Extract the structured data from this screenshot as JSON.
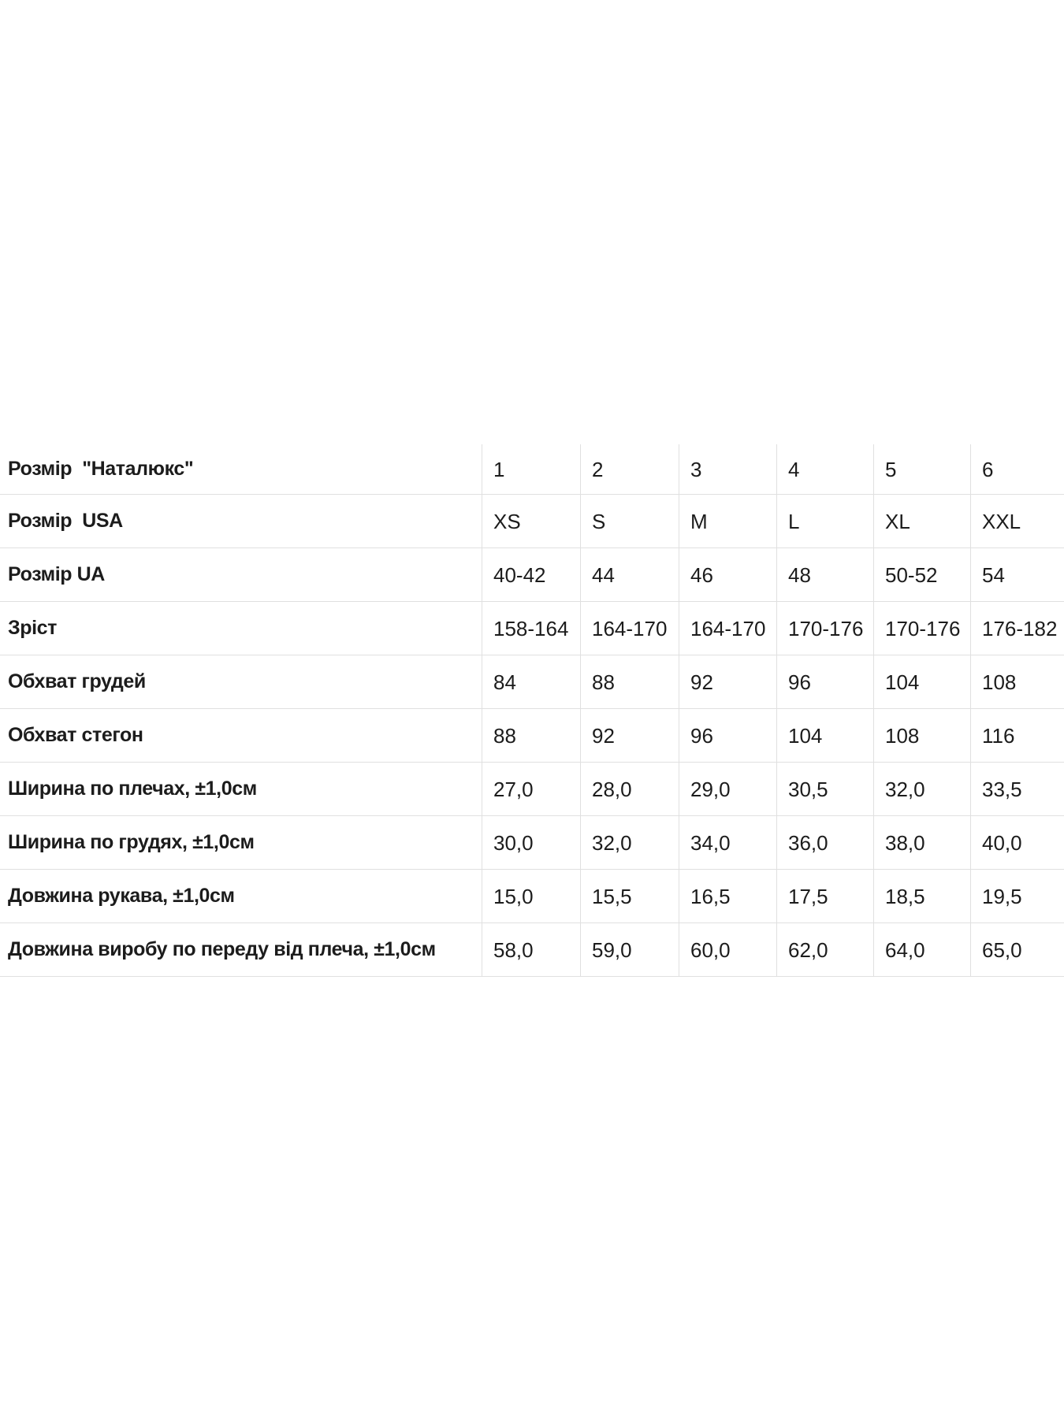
{
  "colors": {
    "background": "#ffffff",
    "text": "#1c1c1c",
    "divider": "#e0e0e0"
  },
  "table": {
    "description": "size-chart",
    "rows": [
      {
        "label": "Розмір  \"Наталюкс\"",
        "values": [
          "1",
          "2",
          "3",
          "4",
          "5",
          "6"
        ]
      },
      {
        "label": "Розмір  USA",
        "values": [
          "XS",
          "S",
          "M",
          "L",
          "XL",
          "XXL"
        ]
      },
      {
        "label": "Розмір UA",
        "values": [
          "40-42",
          "44",
          "46",
          "48",
          "50-52",
          "54"
        ]
      },
      {
        "label": "Зріст",
        "values": [
          "158-164",
          "164-170",
          "164-170",
          "170-176",
          "170-176",
          "176-182"
        ]
      },
      {
        "label": "Обхват грудей",
        "values": [
          "84",
          "88",
          "92",
          "96",
          "104",
          "108"
        ]
      },
      {
        "label": "Обхват стегон",
        "values": [
          "88",
          "92",
          "96",
          "104",
          "108",
          "116"
        ]
      },
      {
        "label": "Ширина по плечах, ±1,0см",
        "values": [
          "27,0",
          "28,0",
          "29,0",
          "30,5",
          "32,0",
          "33,5"
        ]
      },
      {
        "label": "Ширина по грудях, ±1,0см",
        "values": [
          "30,0",
          "32,0",
          "34,0",
          "36,0",
          "38,0",
          "40,0"
        ]
      },
      {
        "label": "Довжина рукава, ±1,0см",
        "values": [
          "15,0",
          "15,5",
          "16,5",
          "17,5",
          "18,5",
          "19,5"
        ]
      },
      {
        "label": "Довжина виробу по переду від плеча, ±1,0см",
        "values": [
          "58,0",
          "59,0",
          "60,0",
          "62,0",
          "64,0",
          "65,0"
        ]
      }
    ]
  }
}
